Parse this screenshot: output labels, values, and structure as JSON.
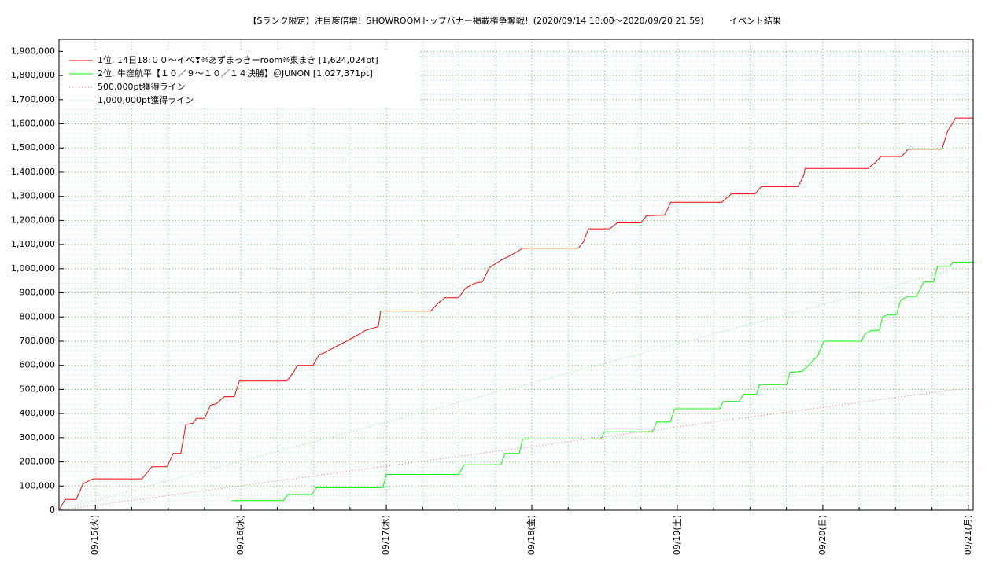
{
  "chart_data": {
    "type": "line",
    "title": "【Sランク限定】注目度倍増！SHOWROOMトップバナー掲載権争奪戦！(2020/09/14 18:00〜2020/09/20 21:59)",
    "subtitle": "イベント結果",
    "xlim": [
      "09/14 18:00",
      "09/21 00:48"
    ],
    "xticks": [
      {
        "value": "09/15 00:00",
        "label": "09/15(火)"
      },
      {
        "value": "09/16 00:00",
        "label": "09/16(水)"
      },
      {
        "value": "09/17 00:00",
        "label": "09/17(木)"
      },
      {
        "value": "09/18 00:00",
        "label": "09/18(金)"
      },
      {
        "value": "09/19 00:00",
        "label": "09/19(土)"
      },
      {
        "value": "09/20 00:00",
        "label": "09/20(日)"
      },
      {
        "value": "09/21 00:00",
        "label": "09/21(月)"
      }
    ],
    "ylim": [
      0,
      1950000
    ],
    "yticks": [
      0,
      {
        "value": 100000,
        "label": "100,000"
      },
      {
        "value": 200000,
        "label": "200,000"
      },
      {
        "value": 300000,
        "label": "300,000"
      },
      {
        "value": 400000,
        "label": "400,000"
      },
      {
        "value": 500000,
        "label": "500,000"
      },
      {
        "value": 600000,
        "label": "600,000"
      },
      {
        "value": 700000,
        "label": "700,000"
      },
      {
        "value": 800000,
        "label": "800,000"
      },
      {
        "value": 900000,
        "label": "900,000"
      },
      {
        "value": 1000000,
        "label": "1,000,000"
      },
      {
        "value": 1100000,
        "label": "1,100,000"
      },
      {
        "value": 1200000,
        "label": "1,200,000"
      },
      {
        "value": 1300000,
        "label": "1,300,000"
      },
      {
        "value": 1400000,
        "label": "1,400,000"
      },
      {
        "value": 1500000,
        "label": "1,500,000"
      },
      {
        "value": 1600000,
        "label": "1,600,000"
      },
      {
        "value": 1700000,
        "label": "1,700,000"
      },
      {
        "value": 1800000,
        "label": "1,800,000"
      },
      {
        "value": 1900000,
        "label": "1,900,000"
      }
    ],
    "grid": true,
    "legend": "upper-left",
    "series": [
      {
        "name": "1位. 14日18:００〜イベ❣❊あずまっきーroom❊東まき [1,624,024pt]",
        "color": "#ff0000",
        "style": "solid",
        "x": [
          "09/14 18:00",
          "09/14 19:00",
          "09/14 20:50",
          "09/14 22:00",
          "09/14 23:35",
          "09/15 07:40",
          "09/15 09:20",
          "09/15 11:50",
          "09/15 12:50",
          "09/15 14:05",
          "09/15 14:55",
          "09/15 16:05",
          "09/15 16:40",
          "09/15 18:00",
          "09/15 19:00",
          "09/15 19:55",
          "09/15 21:15",
          "09/15 22:55",
          "09/15 23:45",
          "09/16 07:35",
          "09/16 08:40",
          "09/16 09:20",
          "09/16 11:55",
          "09/16 12:55",
          "09/16 13:40",
          "09/16 14:45",
          "09/16 16:40",
          "09/16 18:55",
          "09/16 20:35",
          "09/16 22:40",
          "09/16 23:05",
          "09/17 07:20",
          "09/17 08:40",
          "09/17 09:40",
          "09/17 11:55",
          "09/17 13:05",
          "09/17 14:35",
          "09/17 15:50",
          "09/17 17:00",
          "09/17 18:55",
          "09/17 20:50",
          "09/17 22:30",
          "09/18 07:40",
          "09/18 08:30",
          "09/18 09:20",
          "09/18 12:50",
          "09/18 14:05",
          "09/18 18:00",
          "09/18 18:55",
          "09/18 21:55",
          "09/18 22:55",
          "09/19 07:20",
          "09/19 08:55",
          "09/19 12:50",
          "09/19 13:50",
          "09/19 19:55",
          "09/19 20:50",
          "09/19 21:05",
          "09/20 07:25",
          "09/20 08:40",
          "09/20 09:35",
          "09/20 13:00",
          "09/20 14:05",
          "09/20 19:40",
          "09/20 20:35",
          "09/20 21:55",
          "09/21 00:45"
        ],
        "values": [
          0,
          45000,
          45000,
          110000,
          130000,
          130000,
          180000,
          180000,
          235000,
          235000,
          355000,
          360000,
          380000,
          380000,
          435000,
          440000,
          470000,
          470000,
          535000,
          535000,
          570000,
          600000,
          600000,
          645000,
          650000,
          665000,
          690000,
          720000,
          745000,
          760000,
          825000,
          825000,
          860000,
          880000,
          880000,
          920000,
          940000,
          945000,
          1005000,
          1035000,
          1060000,
          1085000,
          1085000,
          1110000,
          1165000,
          1165000,
          1190000,
          1190000,
          1220000,
          1222000,
          1275000,
          1275000,
          1310000,
          1310000,
          1340000,
          1340000,
          1385000,
          1415000,
          1415000,
          1440000,
          1465000,
          1465000,
          1495000,
          1495000,
          1570000,
          1624024,
          1624024
        ]
      },
      {
        "name": "2位. 牛窪航平【１０／９〜１０／１４決勝】＠JUNON [1,027,371pt]",
        "color": "#00ff00",
        "style": "solid",
        "x": [
          "09/15 22:30",
          "09/16 07:00",
          "09/16 07:45",
          "09/16 11:45",
          "09/16 12:25",
          "09/16 23:25",
          "09/17 00:00",
          "09/17 11:55",
          "09/17 12:50",
          "09/17 18:55",
          "09/17 19:35",
          "09/17 21:55",
          "09/17 22:30",
          "09/18 11:25",
          "09/18 11:55",
          "09/18 19:55",
          "09/18 20:35",
          "09/18 22:50",
          "09/18 23:35",
          "09/19 07:00",
          "09/19 07:35",
          "09/19 10:10",
          "09/19 10:55",
          "09/19 13:05",
          "09/19 13:35",
          "09/19 18:00",
          "09/19 18:35",
          "09/19 20:35",
          "09/19 21:15",
          "09/19 23:10",
          "09/20 00:10",
          "09/20 06:20",
          "09/20 07:00",
          "09/20 08:00",
          "09/20 09:20",
          "09/20 09:50",
          "09/20 10:55",
          "09/20 12:10",
          "09/20 12:50",
          "09/20 14:05",
          "09/20 15:25",
          "09/20 16:40",
          "09/20 18:15",
          "09/20 18:55",
          "09/20 20:55",
          "09/20 21:30",
          "09/21 00:45"
        ],
        "values": [
          40000,
          40000,
          65000,
          65000,
          93000,
          93000,
          148000,
          148000,
          188000,
          188000,
          235000,
          235000,
          295000,
          295000,
          325000,
          325000,
          365000,
          365000,
          420000,
          420000,
          450000,
          450000,
          480000,
          480000,
          520000,
          520000,
          570000,
          575000,
          590000,
          640000,
          700000,
          700000,
          730000,
          745000,
          745000,
          800000,
          810000,
          810000,
          870000,
          885000,
          885000,
          945000,
          945000,
          1010000,
          1010000,
          1027371,
          1027371
        ]
      },
      {
        "name": "500,000pt獲得ライン",
        "color": "#ff6666",
        "style": "dotted",
        "x": [
          "09/14 18:00",
          "09/20 21:59"
        ],
        "values": [
          0,
          500000
        ]
      },
      {
        "name": "1,000,000pt獲得ライン",
        "color": "#66ff66",
        "style": "dotted",
        "x": [
          "09/14 18:00",
          "09/20 21:59"
        ],
        "values": [
          0,
          1000000
        ]
      }
    ]
  }
}
